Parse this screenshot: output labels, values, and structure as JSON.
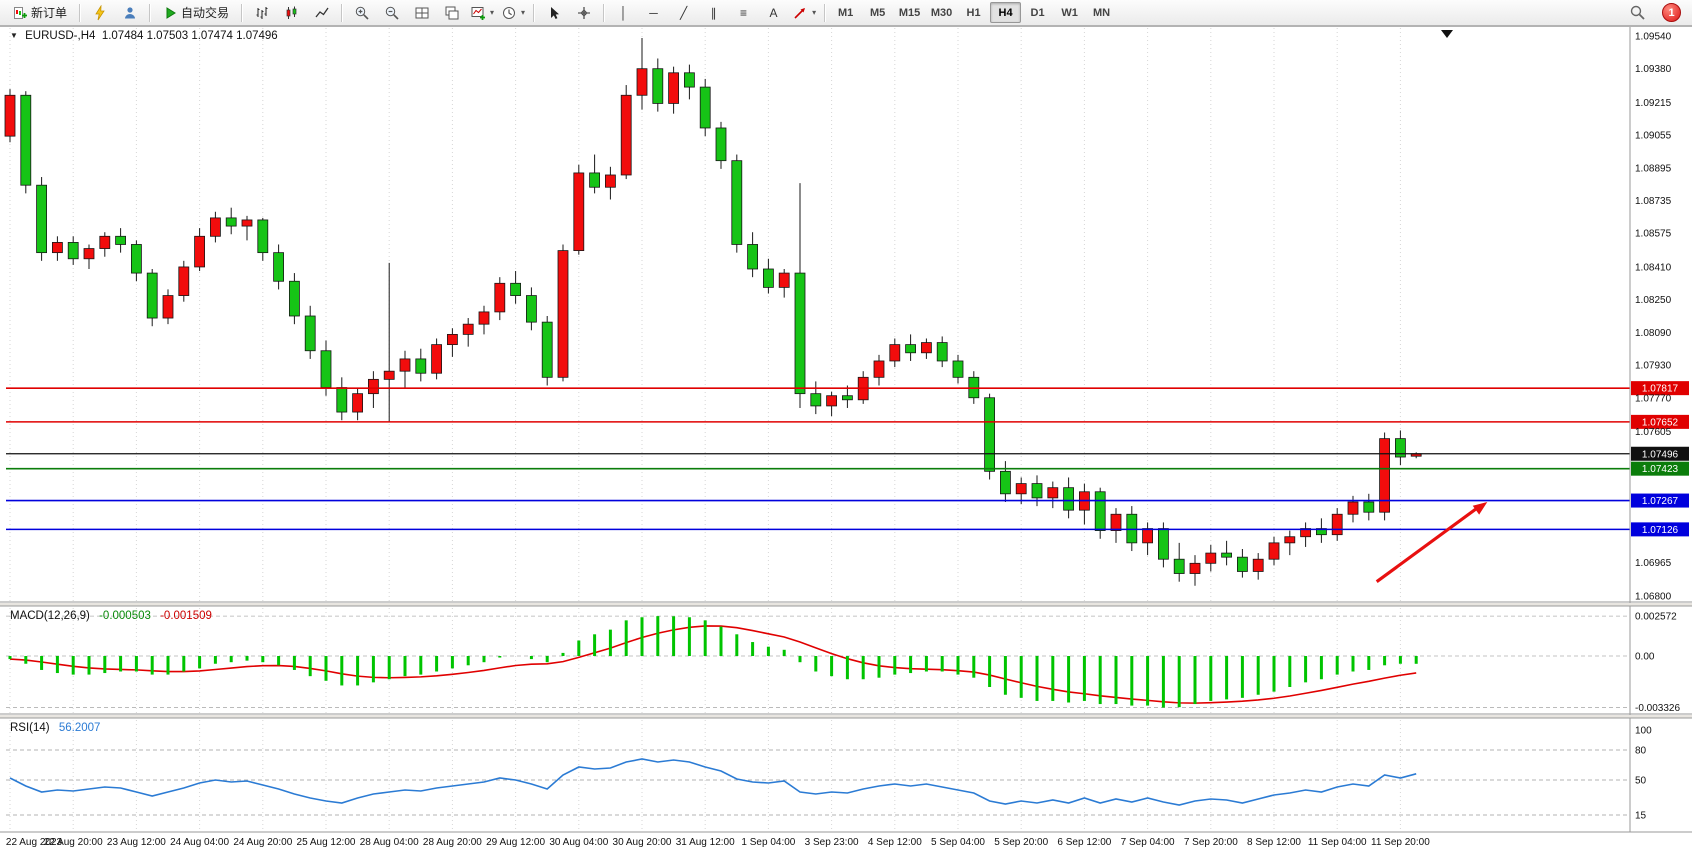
{
  "toolbar": {
    "new_order_label": "新订单",
    "auto_trading_label": "自动交易",
    "timeframes": [
      "M1",
      "M5",
      "M15",
      "M30",
      "H1",
      "H4",
      "D1",
      "W1",
      "MN"
    ],
    "active_timeframe": "H4",
    "notification_badge": "1",
    "tool_glyphs": {
      "vline": "│",
      "hline": "─",
      "trendline": "╱",
      "channel": "∥",
      "fibo": "≡",
      "text": "A"
    },
    "icon_names": [
      "new-order-icon",
      "lightning-icon",
      "profile-icon",
      "autotrading-play-icon",
      "bar-chart-icon",
      "candlestick-chart-icon",
      "line-chart-icon",
      "zoom-in-icon",
      "zoom-out-icon",
      "tile-windows-icon",
      "cascade-windows-icon",
      "add-indicator-icon",
      "periods-clock-icon",
      "cursor-icon",
      "crosshair-icon",
      "arrow-tool-icon",
      "search-icon",
      "notification-badge"
    ]
  },
  "chart": {
    "symbol_label": "EURUSD-,H4",
    "ohlc_label": "1.07484 1.07503 1.07474 1.07496"
  },
  "chart_data": {
    "type": "candlestick",
    "symbol": "EURUSD",
    "timeframe": "H4",
    "title": "EURUSD-,H4 1.07484 1.07503 1.07474 1.07496",
    "price_axis_labels": [
      "1.09540",
      "1.09380",
      "1.09215",
      "1.09055",
      "1.08895",
      "1.08735",
      "1.08575",
      "1.08410",
      "1.08250",
      "1.08090",
      "1.07930",
      "1.07770",
      "1.07605",
      "1.06965",
      "1.06800"
    ],
    "price_axis_top": 1.0954,
    "price_axis_bottom": 1.068,
    "time_labels": [
      "22 Aug 2023",
      "22 Aug 20:00",
      "23 Aug 12:00",
      "24 Aug 04:00",
      "24 Aug 20:00",
      "25 Aug 12:00",
      "28 Aug 04:00",
      "28 Aug 20:00",
      "29 Aug 12:00",
      "30 Aug 04:00",
      "30 Aug 20:00",
      "31 Aug 12:00",
      "1 Sep 04:00",
      "3 Sep 23:00",
      "4 Sep 12:00",
      "5 Sep 04:00",
      "5 Sep 20:00",
      "6 Sep 12:00",
      "7 Sep 04:00",
      "7 Sep 20:00",
      "8 Sep 12:00",
      "11 Sep 04:00",
      "11 Sep 20:00"
    ],
    "candles": [
      [
        1.0905,
        1.0928,
        1.0902,
        1.0925
      ],
      [
        1.0925,
        1.0927,
        1.0877,
        1.0881
      ],
      [
        1.0881,
        1.0885,
        1.0844,
        1.0848
      ],
      [
        1.0848,
        1.0856,
        1.0844,
        1.0853
      ],
      [
        1.0853,
        1.0856,
        1.0842,
        1.0845
      ],
      [
        1.0845,
        1.0852,
        1.084,
        1.085
      ],
      [
        1.085,
        1.0858,
        1.0846,
        1.0856
      ],
      [
        1.0856,
        1.086,
        1.0848,
        1.0852
      ],
      [
        1.0852,
        1.0854,
        1.0834,
        1.0838
      ],
      [
        1.0838,
        1.084,
        1.0812,
        1.0816
      ],
      [
        1.0816,
        1.083,
        1.0813,
        1.0827
      ],
      [
        1.0827,
        1.0844,
        1.0824,
        1.0841
      ],
      [
        1.0841,
        1.086,
        1.0839,
        1.0856
      ],
      [
        1.0856,
        1.0868,
        1.0853,
        1.0865
      ],
      [
        1.0865,
        1.087,
        1.0857,
        1.0861
      ],
      [
        1.0861,
        1.0866,
        1.0854,
        1.0864
      ],
      [
        1.0864,
        1.0865,
        1.0844,
        1.0848
      ],
      [
        1.0848,
        1.0852,
        1.083,
        1.0834
      ],
      [
        1.0834,
        1.0838,
        1.0813,
        1.0817
      ],
      [
        1.0817,
        1.0822,
        1.0796,
        1.08
      ],
      [
        1.08,
        1.0805,
        1.0778,
        1.0782
      ],
      [
        1.0782,
        1.0787,
        1.0766,
        1.077
      ],
      [
        1.077,
        1.0782,
        1.0766,
        1.0779
      ],
      [
        1.0779,
        1.079,
        1.0772,
        1.0786
      ],
      [
        1.0786,
        1.0843,
        1.0765,
        1.079
      ],
      [
        1.079,
        1.08,
        1.0782,
        1.0796
      ],
      [
        1.0796,
        1.0801,
        1.0785,
        1.0789
      ],
      [
        1.0789,
        1.0806,
        1.0786,
        1.0803
      ],
      [
        1.0803,
        1.0811,
        1.0797,
        1.0808
      ],
      [
        1.0808,
        1.0816,
        1.0802,
        1.0813
      ],
      [
        1.0813,
        1.0822,
        1.0808,
        1.0819
      ],
      [
        1.0819,
        1.0836,
        1.0815,
        1.0833
      ],
      [
        1.0833,
        1.0839,
        1.0823,
        1.0827
      ],
      [
        1.0827,
        1.0831,
        1.081,
        1.0814
      ],
      [
        1.0814,
        1.0817,
        1.0783,
        1.0787
      ],
      [
        1.0787,
        1.0852,
        1.0785,
        1.0849
      ],
      [
        1.0849,
        1.0891,
        1.0847,
        1.0887
      ],
      [
        1.0887,
        1.0896,
        1.0877,
        1.088
      ],
      [
        1.088,
        1.089,
        1.0874,
        1.0886
      ],
      [
        1.0886,
        1.093,
        1.0884,
        1.0925
      ],
      [
        1.0925,
        1.0953,
        1.0918,
        1.0938
      ],
      [
        1.0938,
        1.0943,
        1.0917,
        1.0921
      ],
      [
        1.0921,
        1.0939,
        1.0916,
        1.0936
      ],
      [
        1.0936,
        1.094,
        1.0923,
        1.0929
      ],
      [
        1.0929,
        1.0933,
        1.0905,
        1.0909
      ],
      [
        1.0909,
        1.0912,
        1.0889,
        1.0893
      ],
      [
        1.0893,
        1.0896,
        1.0848,
        1.0852
      ],
      [
        1.0852,
        1.0858,
        1.0836,
        1.084
      ],
      [
        1.084,
        1.0845,
        1.0828,
        1.0831
      ],
      [
        1.0831,
        1.084,
        1.0826,
        1.0838
      ],
      [
        1.0838,
        1.0882,
        1.0772,
        1.0779
      ],
      [
        1.0779,
        1.0785,
        1.0769,
        1.0773
      ],
      [
        1.0773,
        1.078,
        1.0768,
        1.0778
      ],
      [
        1.0778,
        1.0783,
        1.0772,
        1.0776
      ],
      [
        1.0776,
        1.079,
        1.0774,
        1.0787
      ],
      [
        1.0787,
        1.0798,
        1.0783,
        1.0795
      ],
      [
        1.0795,
        1.0806,
        1.0792,
        1.0803
      ],
      [
        1.0803,
        1.0808,
        1.0795,
        1.0799
      ],
      [
        1.0799,
        1.0806,
        1.0796,
        1.0804
      ],
      [
        1.0804,
        1.0807,
        1.0792,
        1.0795
      ],
      [
        1.0795,
        1.0798,
        1.0784,
        1.0787
      ],
      [
        1.0787,
        1.079,
        1.0774,
        1.0777
      ],
      [
        1.0777,
        1.0779,
        1.0737,
        1.0741
      ],
      [
        1.0741,
        1.0746,
        1.0726,
        1.073
      ],
      [
        1.073,
        1.0738,
        1.0725,
        1.0735
      ],
      [
        1.0735,
        1.0739,
        1.0724,
        1.0728
      ],
      [
        1.0728,
        1.0736,
        1.0723,
        1.0733
      ],
      [
        1.0733,
        1.0738,
        1.0718,
        1.0722
      ],
      [
        1.0722,
        1.0735,
        1.0715,
        1.0731
      ],
      [
        1.0731,
        1.0733,
        1.0708,
        1.0712
      ],
      [
        1.0712,
        1.0723,
        1.0706,
        1.072
      ],
      [
        1.072,
        1.0724,
        1.0702,
        1.0706
      ],
      [
        1.0706,
        1.0716,
        1.07,
        1.0713
      ],
      [
        1.0713,
        1.0716,
        1.0694,
        1.0698
      ],
      [
        1.0698,
        1.0706,
        1.0687,
        1.0691
      ],
      [
        1.0691,
        1.07,
        1.0685,
        1.0696
      ],
      [
        1.0696,
        1.0705,
        1.0692,
        1.0701
      ],
      [
        1.0701,
        1.0707,
        1.0695,
        1.0699
      ],
      [
        1.0699,
        1.0703,
        1.0689,
        1.0692
      ],
      [
        1.0692,
        1.0701,
        1.0688,
        1.0698
      ],
      [
        1.0698,
        1.0709,
        1.0695,
        1.0706
      ],
      [
        1.0706,
        1.0712,
        1.07,
        1.0709
      ],
      [
        1.0709,
        1.0716,
        1.0704,
        1.0713
      ],
      [
        1.0713,
        1.0718,
        1.0706,
        1.071
      ],
      [
        1.071,
        1.0723,
        1.0707,
        1.072
      ],
      [
        1.072,
        1.0729,
        1.0716,
        1.0726
      ],
      [
        1.0726,
        1.073,
        1.0717,
        1.0721
      ],
      [
        1.0721,
        1.076,
        1.0717,
        1.0757
      ],
      [
        1.0757,
        1.0761,
        1.0744,
        1.0748
      ],
      [
        1.07484,
        1.07503,
        1.07474,
        1.07496
      ]
    ],
    "hlines": [
      {
        "price": "1.07817",
        "value": 1.07817,
        "color": "#e00000"
      },
      {
        "price": "1.07652",
        "value": 1.07652,
        "color": "#e00000"
      },
      {
        "price": "1.07496",
        "value": 1.07496,
        "color": "#101010",
        "current": true
      },
      {
        "price": "1.07423",
        "value": 1.07423,
        "color": "#0b7d0b"
      },
      {
        "price": "1.07267",
        "value": 1.07267,
        "color": "#0000dd"
      },
      {
        "price": "1.07126",
        "value": 1.07126,
        "color": "#0000dd"
      }
    ],
    "colors": {
      "bull": "#f20c0c",
      "bear": "#16c416",
      "wick": "#1a1a1a",
      "grid": "#d6d6d6",
      "macd_hist": "#00c400",
      "macd_signal": "#e00000",
      "rsi_line": "#2b7bd4",
      "arrow": "#e81010"
    },
    "annotation_arrow": {
      "from_candle": 86.5,
      "from_price": 1.0687,
      "to_candle": 93.5,
      "to_price": 1.0726
    },
    "macd": {
      "label": "MACD(12,26,9)",
      "main_value": "-0.000503",
      "signal_value": "-0.001509",
      "scale_labels": [
        "0.002572",
        "0.00",
        "-0.003326"
      ],
      "scale_max": 0.002572,
      "scale_min": -0.003326,
      "values": [
        -0.0002,
        -0.0005,
        -0.0009,
        -0.0011,
        -0.0012,
        -0.0012,
        -0.0011,
        -0.001,
        -0.001,
        -0.0012,
        -0.0012,
        -0.001,
        -0.0008,
        -0.0005,
        -0.0004,
        -0.0003,
        -0.0004,
        -0.0006,
        -0.0009,
        -0.0013,
        -0.0016,
        -0.0019,
        -0.0019,
        -0.0017,
        -0.0015,
        -0.0013,
        -0.0012,
        -0.001,
        -0.0008,
        -0.0006,
        -0.0004,
        -0.0001,
        0.0,
        -0.0002,
        -0.0004,
        0.0002,
        0.001,
        0.0014,
        0.0017,
        0.0023,
        0.0025,
        0.002572,
        0.00256,
        0.0025,
        0.0023,
        0.0019,
        0.0014,
        0.0009,
        0.0006,
        0.0004,
        -0.0004,
        -0.001,
        -0.0013,
        -0.0015,
        -0.0015,
        -0.0014,
        -0.0012,
        -0.0011,
        -0.001,
        -0.001,
        -0.0012,
        -0.0014,
        -0.002,
        -0.0025,
        -0.0027,
        -0.0029,
        -0.0029,
        -0.003,
        -0.0029,
        -0.0031,
        -0.0031,
        -0.0032,
        -0.0032,
        -0.003326,
        -0.0033,
        -0.0031,
        -0.0029,
        -0.0028,
        -0.0027,
        -0.0025,
        -0.0023,
        -0.002,
        -0.0017,
        -0.0015,
        -0.0012,
        -0.001,
        -0.0009,
        -0.0006,
        -0.0005,
        -0.000503
      ]
    },
    "rsi": {
      "label": "RSI(14)",
      "value": "56.2007",
      "scale_labels": [
        "100",
        "80",
        "50",
        "15"
      ],
      "levels": [
        80,
        50,
        15
      ],
      "values": [
        52,
        44,
        38,
        40,
        39,
        41,
        43,
        42,
        38,
        34,
        38,
        42,
        47,
        50,
        48,
        49,
        45,
        41,
        36,
        32,
        29,
        27,
        32,
        36,
        38,
        40,
        39,
        42,
        44,
        46,
        48,
        52,
        50,
        46,
        41,
        55,
        63,
        61,
        62,
        68,
        71,
        68,
        70,
        68,
        63,
        59,
        51,
        48,
        47,
        49,
        38,
        36,
        38,
        37,
        41,
        44,
        46,
        44,
        46,
        43,
        40,
        37,
        29,
        26,
        29,
        27,
        30,
        27,
        32,
        27,
        31,
        28,
        32,
        28,
        25,
        29,
        31,
        30,
        27,
        31,
        35,
        37,
        40,
        38,
        43,
        46,
        44,
        55,
        52,
        56.2
      ]
    }
  }
}
